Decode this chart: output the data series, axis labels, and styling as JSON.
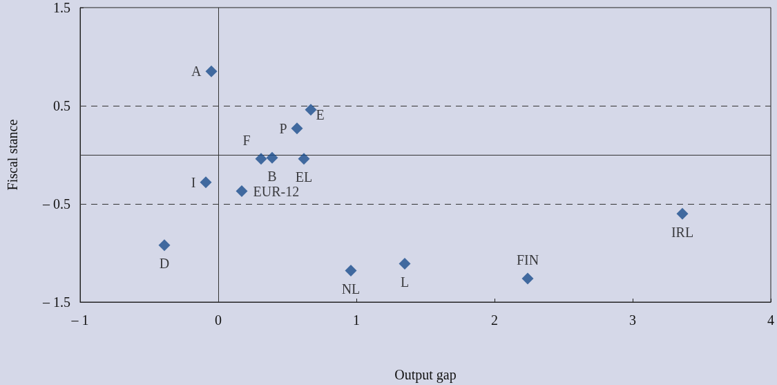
{
  "chart_data": {
    "type": "scatter",
    "xlabel": "Output gap",
    "ylabel": "Fiscal stance",
    "marker": "diamond",
    "legend": false,
    "grid": false,
    "xlim": [
      -1,
      4
    ],
    "ylim": [
      -1.5,
      1.5
    ],
    "xticks": [
      {
        "value": -1,
        "label": "– 1"
      },
      0,
      1,
      2,
      3,
      4
    ],
    "yticks": [
      {
        "value": -1.5,
        "label": "– 1.5"
      },
      {
        "value": -0.5,
        "label": "– 0.5"
      },
      0.5,
      1.5
    ],
    "ref_lines": [
      {
        "axis": "y",
        "value": 0.5,
        "line_style": "dashed"
      },
      {
        "axis": "y",
        "value": -0.5,
        "line_style": "dashed"
      },
      {
        "axis": "y",
        "value": 0,
        "line_style": "solid"
      },
      {
        "axis": "x",
        "value": 0,
        "line_style": "solid"
      }
    ],
    "series": [
      {
        "name": "A",
        "color": "#1a4d8c",
        "x": [
          -0.05
        ],
        "values": [
          0.85
        ]
      },
      {
        "name": "E",
        "color": "#1a4d8c",
        "x": [
          0.67
        ],
        "values": [
          0.46
        ]
      },
      {
        "name": "P",
        "color": "#1a4d8c",
        "x": [
          0.57
        ],
        "values": [
          0.27
        ]
      },
      {
        "name": "F",
        "color": "#1a4d8c",
        "x": [
          0.31
        ],
        "values": [
          -0.04
        ]
      },
      {
        "name": "B",
        "color": "#1a4d8c",
        "x": [
          0.39
        ],
        "values": [
          -0.03
        ]
      },
      {
        "name": "EL",
        "color": "#1a4d8c",
        "x": [
          0.62
        ],
        "values": [
          -0.04
        ]
      },
      {
        "name": "I",
        "color": "#1a4d8c",
        "x": [
          -0.09
        ],
        "values": [
          -0.28
        ]
      },
      {
        "name": "EUR-12",
        "color": "#1a4d8c",
        "x": [
          0.17
        ],
        "values": [
          -0.37
        ]
      },
      {
        "name": "IRL",
        "color": "#1a4d8c",
        "x": [
          3.36
        ],
        "values": [
          -0.6
        ]
      },
      {
        "name": "D",
        "color": "#1a4d8c",
        "x": [
          -0.39
        ],
        "values": [
          -0.92
        ]
      },
      {
        "name": "NL",
        "color": "#1a4d8c",
        "x": [
          0.96
        ],
        "values": [
          -1.18
        ]
      },
      {
        "name": "L",
        "color": "#1a4d8c",
        "x": [
          1.35
        ],
        "values": [
          -1.11
        ]
      },
      {
        "name": "FIN",
        "color": "#1a4d8c",
        "x": [
          2.24
        ],
        "values": [
          -1.26
        ]
      }
    ]
  }
}
